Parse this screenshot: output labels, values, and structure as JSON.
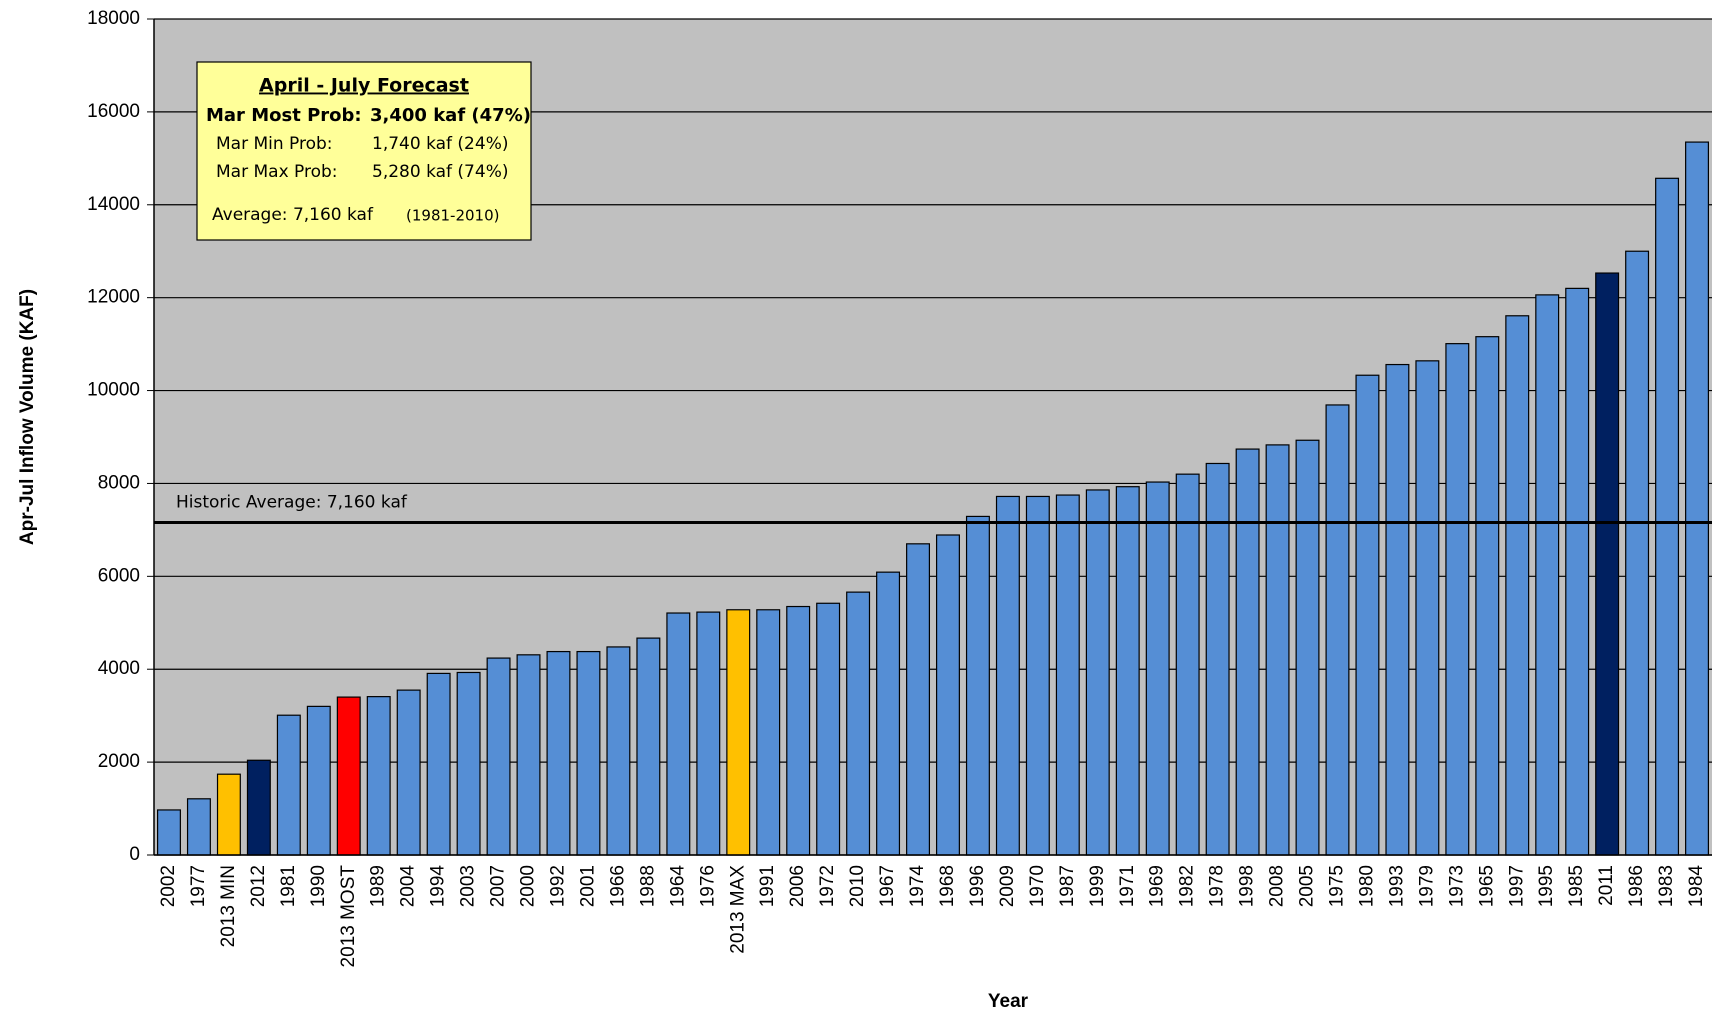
{
  "chart_data": {
    "type": "bar",
    "x_label": "Year",
    "y_label": "Apr-Jul Inflow Volume (KAF)",
    "categories": [
      "2002",
      "1977",
      "2013 MIN",
      "2012",
      "1981",
      "1990",
      "2013 MOST",
      "1989",
      "2004",
      "1994",
      "2003",
      "2007",
      "2000",
      "1992",
      "2001",
      "1966",
      "1988",
      "1964",
      "1976",
      "2013 MAX",
      "1991",
      "2006",
      "1972",
      "2010",
      "1967",
      "1974",
      "1968",
      "1996",
      "2009",
      "1970",
      "1987",
      "1999",
      "1971",
      "1969",
      "1982",
      "1978",
      "1998",
      "2008",
      "2005",
      "1975",
      "1980",
      "1993",
      "1979",
      "1973",
      "1965",
      "1997",
      "1995",
      "1985",
      "2011",
      "1986",
      "1983",
      "1984"
    ],
    "values": [
      970,
      1210,
      1740,
      2040,
      3010,
      3200,
      3400,
      3410,
      3550,
      3910,
      3930,
      4240,
      4310,
      4380,
      4380,
      4480,
      4670,
      5210,
      5230,
      5280,
      5280,
      5350,
      5420,
      5660,
      6090,
      6700,
      6890,
      7290,
      7720,
      7720,
      7750,
      7860,
      7930,
      8030,
      8200,
      8430,
      8740,
      8830,
      8930,
      9690,
      10330,
      10560,
      10640,
      11010,
      11160,
      11610,
      12060,
      12200,
      12530,
      13000,
      14570,
      15350
    ],
    "colors": [
      "#558ed5",
      "#558ed5",
      "#ffc000",
      "#002060",
      "#558ed5",
      "#558ed5",
      "#ff0000",
      "#558ed5",
      "#558ed5",
      "#558ed5",
      "#558ed5",
      "#558ed5",
      "#558ed5",
      "#558ed5",
      "#558ed5",
      "#558ed5",
      "#558ed5",
      "#558ed5",
      "#558ed5",
      "#ffc000",
      "#558ed5",
      "#558ed5",
      "#558ed5",
      "#558ed5",
      "#558ed5",
      "#558ed5",
      "#558ed5",
      "#558ed5",
      "#558ed5",
      "#558ed5",
      "#558ed5",
      "#558ed5",
      "#558ed5",
      "#558ed5",
      "#558ed5",
      "#558ed5",
      "#558ed5",
      "#558ed5",
      "#558ed5",
      "#558ed5",
      "#558ed5",
      "#558ed5",
      "#558ed5",
      "#558ed5",
      "#558ed5",
      "#558ed5",
      "#558ed5",
      "#558ed5",
      "#002060",
      "#558ed5",
      "#558ed5",
      "#558ed5"
    ],
    "ylim": [
      0,
      18000
    ],
    "yticks": [
      0,
      2000,
      4000,
      6000,
      8000,
      10000,
      12000,
      14000,
      16000,
      18000
    ],
    "grid": true,
    "reference_line": {
      "value": 7160,
      "label": "Historic Average: 7,160 kaf"
    },
    "forecast_box": {
      "title": "April - July Forecast",
      "lines": [
        [
          "Mar Most Prob:",
          "3,400 kaf (47%)"
        ],
        [
          "Mar Min Prob:",
          "1,740 kaf (24%)"
        ],
        [
          "Mar Max Prob:",
          "5,280 kaf (74%)"
        ]
      ],
      "average": [
        "Average: 7,160 kaf",
        "(1981-2010)"
      ]
    }
  }
}
